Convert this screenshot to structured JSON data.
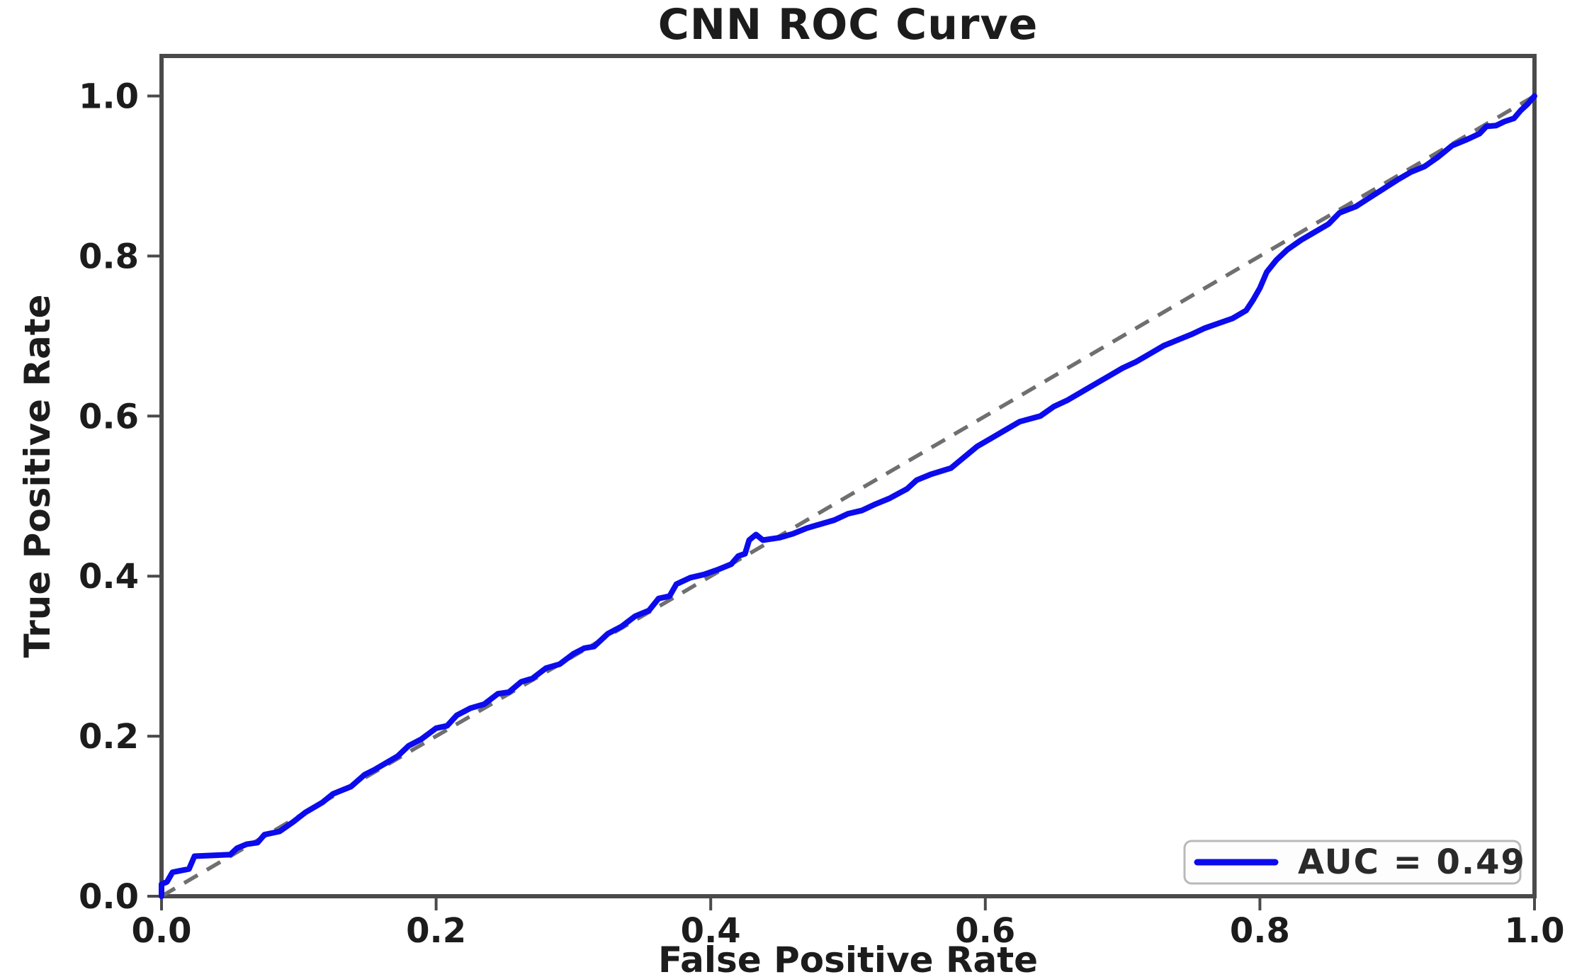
{
  "figure": {
    "background": "#ffffff"
  },
  "colors": {
    "curve": "#0b0bee",
    "reference": "#6f6f6f",
    "spine": "#4a4a4a",
    "text": "#1c1c1c",
    "legend_border": "#b9b9b9",
    "legend_background": "#fdfdfd"
  },
  "chart_data": {
    "type": "line",
    "title": "CNN ROC Curve",
    "xlabel": "False Positive Rate",
    "ylabel": "True Positive Rate",
    "xlim": [
      0.0,
      1.0
    ],
    "ylim": [
      0.0,
      1.05
    ],
    "grid": false,
    "x_tick_labels": [
      "0.0",
      "0.2",
      "0.4",
      "0.6",
      "0.8",
      "1.0"
    ],
    "x_tick_values": [
      0.0,
      0.2,
      0.4,
      0.6,
      0.8,
      1.0
    ],
    "y_tick_labels": [
      "0.0",
      "0.2",
      "0.4",
      "0.6",
      "0.8",
      "1.0"
    ],
    "y_tick_values": [
      0.0,
      0.2,
      0.4,
      0.6,
      0.8,
      1.0
    ],
    "reference_line": {
      "name": "chance diagonal",
      "style": "dashed",
      "from": [
        0.0,
        0.0
      ],
      "to": [
        1.0,
        1.0
      ]
    },
    "legend": {
      "position": "lower right",
      "label": "AUC = 0.49"
    },
    "series": [
      {
        "name": "ROC curve",
        "auc": 0.49,
        "points": [
          [
            0.0,
            0.0
          ],
          [
            0.0,
            0.015
          ],
          [
            0.004,
            0.018
          ],
          [
            0.008,
            0.03
          ],
          [
            0.02,
            0.034
          ],
          [
            0.024,
            0.05
          ],
          [
            0.05,
            0.052
          ],
          [
            0.055,
            0.06
          ],
          [
            0.062,
            0.065
          ],
          [
            0.07,
            0.067
          ],
          [
            0.075,
            0.077
          ],
          [
            0.086,
            0.081
          ],
          [
            0.096,
            0.093
          ],
          [
            0.105,
            0.105
          ],
          [
            0.117,
            0.117
          ],
          [
            0.125,
            0.128
          ],
          [
            0.138,
            0.137
          ],
          [
            0.148,
            0.152
          ],
          [
            0.155,
            0.158
          ],
          [
            0.165,
            0.168
          ],
          [
            0.172,
            0.175
          ],
          [
            0.18,
            0.188
          ],
          [
            0.189,
            0.196
          ],
          [
            0.2,
            0.21
          ],
          [
            0.208,
            0.213
          ],
          [
            0.215,
            0.226
          ],
          [
            0.225,
            0.235
          ],
          [
            0.235,
            0.24
          ],
          [
            0.245,
            0.253
          ],
          [
            0.253,
            0.255
          ],
          [
            0.262,
            0.268
          ],
          [
            0.27,
            0.272
          ],
          [
            0.28,
            0.285
          ],
          [
            0.29,
            0.29
          ],
          [
            0.3,
            0.303
          ],
          [
            0.308,
            0.31
          ],
          [
            0.315,
            0.312
          ],
          [
            0.325,
            0.328
          ],
          [
            0.335,
            0.337
          ],
          [
            0.345,
            0.35
          ],
          [
            0.355,
            0.357
          ],
          [
            0.362,
            0.372
          ],
          [
            0.37,
            0.375
          ],
          [
            0.375,
            0.39
          ],
          [
            0.385,
            0.398
          ],
          [
            0.395,
            0.402
          ],
          [
            0.405,
            0.408
          ],
          [
            0.415,
            0.415
          ],
          [
            0.42,
            0.425
          ],
          [
            0.425,
            0.428
          ],
          [
            0.428,
            0.445
          ],
          [
            0.433,
            0.452
          ],
          [
            0.438,
            0.445
          ],
          [
            0.45,
            0.448
          ],
          [
            0.46,
            0.453
          ],
          [
            0.47,
            0.46
          ],
          [
            0.48,
            0.465
          ],
          [
            0.49,
            0.47
          ],
          [
            0.5,
            0.478
          ],
          [
            0.51,
            0.482
          ],
          [
            0.52,
            0.49
          ],
          [
            0.53,
            0.497
          ],
          [
            0.543,
            0.509
          ],
          [
            0.55,
            0.52
          ],
          [
            0.56,
            0.527
          ],
          [
            0.575,
            0.535
          ],
          [
            0.582,
            0.545
          ],
          [
            0.594,
            0.562
          ],
          [
            0.605,
            0.573
          ],
          [
            0.615,
            0.583
          ],
          [
            0.625,
            0.593
          ],
          [
            0.64,
            0.6
          ],
          [
            0.65,
            0.612
          ],
          [
            0.66,
            0.62
          ],
          [
            0.672,
            0.632
          ],
          [
            0.68,
            0.64
          ],
          [
            0.69,
            0.65
          ],
          [
            0.7,
            0.66
          ],
          [
            0.71,
            0.668
          ],
          [
            0.72,
            0.678
          ],
          [
            0.73,
            0.688
          ],
          [
            0.74,
            0.695
          ],
          [
            0.75,
            0.702
          ],
          [
            0.76,
            0.71
          ],
          [
            0.77,
            0.716
          ],
          [
            0.78,
            0.722
          ],
          [
            0.79,
            0.732
          ],
          [
            0.795,
            0.745
          ],
          [
            0.8,
            0.76
          ],
          [
            0.805,
            0.78
          ],
          [
            0.812,
            0.795
          ],
          [
            0.82,
            0.808
          ],
          [
            0.83,
            0.82
          ],
          [
            0.84,
            0.83
          ],
          [
            0.85,
            0.84
          ],
          [
            0.858,
            0.854
          ],
          [
            0.87,
            0.862
          ],
          [
            0.88,
            0.873
          ],
          [
            0.89,
            0.884
          ],
          [
            0.9,
            0.895
          ],
          [
            0.91,
            0.905
          ],
          [
            0.92,
            0.912
          ],
          [
            0.93,
            0.924
          ],
          [
            0.94,
            0.938
          ],
          [
            0.95,
            0.945
          ],
          [
            0.96,
            0.953
          ],
          [
            0.965,
            0.962
          ],
          [
            0.972,
            0.963
          ],
          [
            0.978,
            0.968
          ],
          [
            0.985,
            0.972
          ],
          [
            0.99,
            0.982
          ],
          [
            0.995,
            0.99
          ],
          [
            1.0,
            1.0
          ]
        ]
      }
    ]
  }
}
